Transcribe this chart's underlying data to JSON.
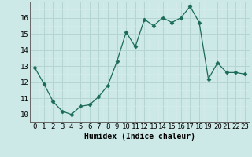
{
  "x": [
    0,
    1,
    2,
    3,
    4,
    5,
    6,
    7,
    8,
    9,
    10,
    11,
    12,
    13,
    14,
    15,
    16,
    17,
    18,
    19,
    20,
    21,
    22,
    23
  ],
  "y": [
    12.9,
    11.9,
    10.8,
    10.2,
    10.0,
    10.5,
    10.6,
    11.1,
    11.8,
    13.3,
    15.1,
    14.2,
    15.9,
    15.5,
    16.0,
    15.7,
    16.0,
    16.7,
    15.7,
    12.2,
    13.2,
    12.6,
    12.6,
    12.5
  ],
  "line_color": "#1a6b5a",
  "marker": "D",
  "marker_size": 2.5,
  "bg_color": "#cce9e7",
  "grid_major_color": "#b5d5d3",
  "grid_minor_color": "#d8eceb",
  "xlabel": "Humidex (Indice chaleur)",
  "ylim": [
    9.5,
    17.0
  ],
  "xlim": [
    -0.5,
    23.5
  ],
  "yticks": [
    10,
    11,
    12,
    13,
    14,
    15,
    16
  ],
  "xticks": [
    0,
    1,
    2,
    3,
    4,
    5,
    6,
    7,
    8,
    9,
    10,
    11,
    12,
    13,
    14,
    15,
    16,
    17,
    18,
    19,
    20,
    21,
    22,
    23
  ],
  "xlabel_fontsize": 7,
  "tick_fontsize": 6.5
}
